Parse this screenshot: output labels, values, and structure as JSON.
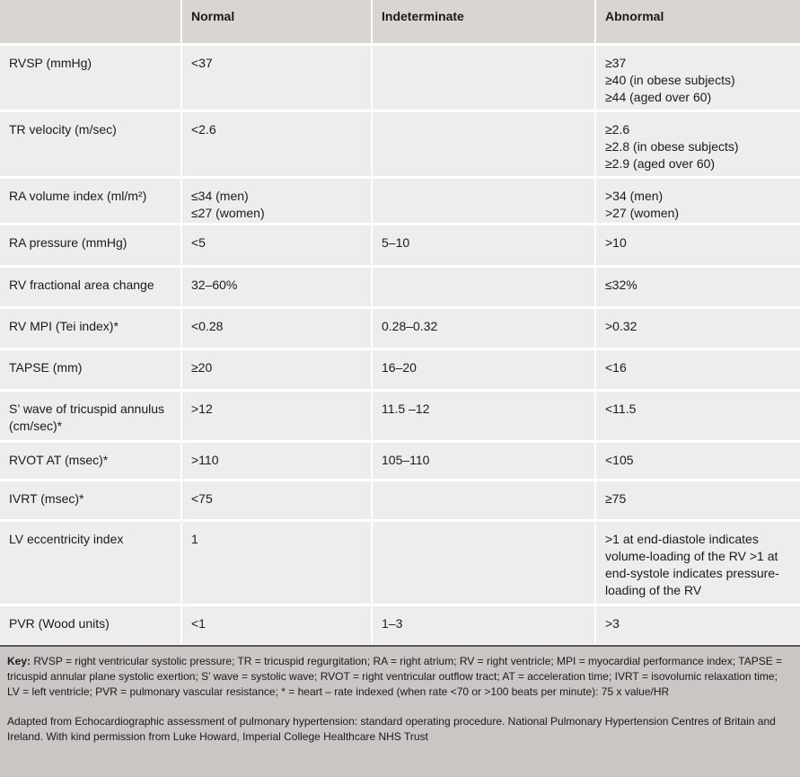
{
  "table": {
    "header": [
      "",
      "Normal",
      "Indeterminate",
      "Abnormal"
    ],
    "rows": [
      [
        [
          "RVSP (mmHg)"
        ],
        [
          "<37"
        ],
        [],
        [
          "≥37",
          "≥40 (in obese subjects)",
          "≥44 (aged over 60)"
        ]
      ],
      [
        [
          "TR velocity (m/sec)"
        ],
        [
          "<2.6"
        ],
        [],
        [
          "≥2.6",
          "≥2.8 (in obese subjects)",
          "≥2.9 (aged over 60)"
        ]
      ],
      [
        [
          "RA volume index (ml/m²)"
        ],
        [
          "≤34 (men)",
          "≤27 (women)"
        ],
        [],
        [
          ">34 (men)",
          ">27 (women)"
        ]
      ],
      [
        [
          "RA pressure (mmHg)"
        ],
        [
          "<5"
        ],
        [
          "5–10"
        ],
        [
          ">10"
        ]
      ],
      [
        [
          "RV fractional area change"
        ],
        [
          "32–60%"
        ],
        [],
        [
          "≤32%"
        ]
      ],
      [
        [
          "RV MPI (Tei index)*"
        ],
        [
          "<0.28"
        ],
        [
          "0.28–0.32"
        ],
        [
          ">0.32"
        ]
      ],
      [
        [
          "TAPSE (mm)"
        ],
        [
          "≥20"
        ],
        [
          "16–20"
        ],
        [
          "<16"
        ]
      ],
      [
        [
          "S’ wave of tricuspid annulus (cm/sec)*"
        ],
        [
          ">12"
        ],
        [
          "11.5 –12"
        ],
        [
          "<11.5"
        ]
      ],
      [
        [
          "RVOT AT (msec)*"
        ],
        [
          ">110"
        ],
        [
          "105–110"
        ],
        [
          "<105"
        ]
      ],
      [
        [
          "IVRT (msec)*"
        ],
        [
          "<75"
        ],
        [],
        [
          "≥75"
        ]
      ],
      [
        [
          "LV eccentricity index"
        ],
        [
          "1"
        ],
        [],
        [
          ">1 at end-diastole indicates volume-loading of the RV >1 at end-systole indicates pressure-loading of the RV"
        ]
      ],
      [
        [
          "PVR (Wood units)"
        ],
        [
          "<1"
        ],
        [
          "1–3"
        ],
        [
          ">3"
        ]
      ]
    ]
  },
  "footer": {
    "key_label": "Key:",
    "key_text": "RVSP = right ventricular systolic pressure; TR = tricuspid regurgitation; RA = right atrium; RV = right ventricle; MPI = myocardial performance index; TAPSE = tricuspid annular plane systolic exertion; S’ wave = systolic wave; RVOT = right ventricular outflow tract; AT = acceleration time; IVRT = isovolumic relaxation time; LV = left ventricle; PVR = pulmonary vascular resistance; * = heart – rate indexed (when rate <70 or >100 beats per minute): 75 x value/HR",
    "source": "Adapted from Echocardiographic assessment of pulmonary hypertension: standard operating procedure. National Pulmonary Hypertension Centres of Britain and Ireland. With kind permission from Luke Howard, Imperial College Healthcare NHS Trust"
  }
}
